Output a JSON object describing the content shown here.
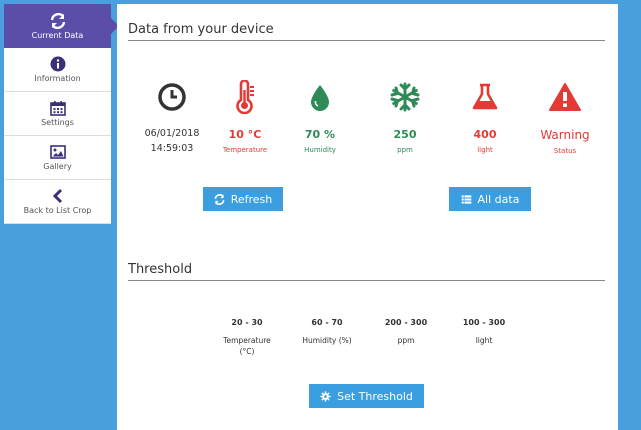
{
  "sidebar": {
    "items": [
      {
        "label": "Current Data"
      },
      {
        "label": "Information"
      },
      {
        "label": "Settings"
      },
      {
        "label": "Gallery"
      },
      {
        "label": "Back to List Crop"
      }
    ]
  },
  "main": {
    "device_title": "Data from your device",
    "date": "06/01/2018",
    "time": "14:59:03",
    "metrics": [
      {
        "value": "10 °C",
        "label": "Temperature",
        "color": "#e53935"
      },
      {
        "value": "70 %",
        "label": "Humidity",
        "color": "#2e8b57"
      },
      {
        "value": "250",
        "label": "ppm",
        "color": "#2e8b57"
      },
      {
        "value": "400",
        "label": "light",
        "color": "#e53935"
      },
      {
        "value": "Warning",
        "label": "Status",
        "color": "#e53935"
      }
    ],
    "refresh_label": "Refresh",
    "alldata_label": "All data",
    "threshold_title": "Threshold",
    "thresholds": [
      {
        "range": "20 - 30",
        "unit": "Temperature\n(°C)"
      },
      {
        "range": "60 - 70",
        "unit": "Humidity (%)"
      },
      {
        "range": "200 - 300",
        "unit": "ppm"
      },
      {
        "range": "100 - 300",
        "unit": "light"
      }
    ],
    "set_threshold_label": "Set Threshold"
  }
}
